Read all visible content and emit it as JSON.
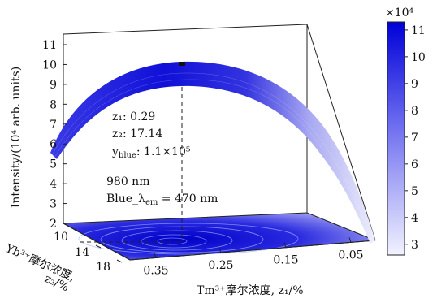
{
  "chart_data": {
    "type": "surface",
    "title": "",
    "zlabel": "Intensity/(10⁴ arb. units)",
    "xlabel": "Tm³⁺摩尔浓度, z₁/%",
    "ylabel_line1": "Yb³⁺摩尔浓度,",
    "ylabel_line2": "z₂/%",
    "x_ticks": [
      "0.35",
      "0.25",
      "0.15",
      "0.05"
    ],
    "y_ticks": [
      "10",
      "14",
      "18"
    ],
    "z_ticks": [
      "2",
      "3",
      "4",
      "5",
      "6",
      "7",
      "8",
      "9",
      "10",
      "11"
    ],
    "zlim": [
      2,
      11.5
    ],
    "colorbar": {
      "multiplier": "×10⁴",
      "ticks": [
        "3",
        "4",
        "5",
        "6",
        "7",
        "8",
        "9",
        "10",
        "11"
      ],
      "range": [
        2.6,
        11.3
      ],
      "color_low": "#f2f2ff",
      "color_high": "#0000d8"
    },
    "peak": {
      "z1_label": "z₁: 0.29",
      "z2_label": "z₂: 17.14",
      "yblue_label": "y",
      "yblue_sub": "blue",
      "yblue_value": ": 1.1×10⁵",
      "z1": 0.29,
      "z2": 17.14,
      "y_blue": 110000
    },
    "excitation_label": "980 nm",
    "emission_label": "Blue_λ",
    "emission_sub": "em",
    "emission_value": " = 470 nm",
    "surface_curve": [
      {
        "z1": 0.42,
        "intensity": 6.2
      },
      {
        "z1": 0.37,
        "intensity": 9.0
      },
      {
        "z1": 0.33,
        "intensity": 10.4
      },
      {
        "z1": 0.29,
        "intensity": 11.0
      },
      {
        "z1": 0.25,
        "intensity": 10.6
      },
      {
        "z1": 0.2,
        "intensity": 9.0
      },
      {
        "z1": 0.15,
        "intensity": 6.6
      },
      {
        "z1": 0.1,
        "intensity": 4.2
      },
      {
        "z1": 0.05,
        "intensity": 2.5
      }
    ]
  }
}
